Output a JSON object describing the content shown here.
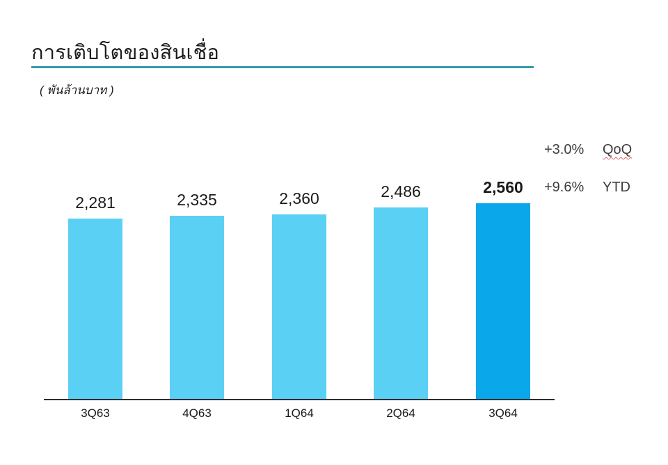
{
  "title": "การเติบโตของสินเชื่อ",
  "unit_label": "( พันล้านบาท )",
  "annotations": [
    {
      "value": "+3.0%",
      "label": "QoQ",
      "spellcheck_underline": true
    },
    {
      "value": "+9.6%",
      "label": "YTD",
      "spellcheck_underline": false
    }
  ],
  "colors": {
    "bar": "#5bd0f5",
    "bar_highlight": "#0aa7ea",
    "title_underline": "#3898ac",
    "axis": "#2e2e2e",
    "spellcheck_red": "#e06666"
  },
  "chart_data": {
    "type": "bar",
    "title": "การเติบโตของสินเชื่อ",
    "subtitle": "( พันล้านบาท )",
    "categories": [
      "3Q63",
      "4Q63",
      "1Q64",
      "2Q64",
      "3Q64"
    ],
    "values": [
      2281,
      2335,
      2360,
      2486,
      2560
    ],
    "display_values": [
      "2,281",
      "2,335",
      "2,360",
      "2,486",
      "2,560"
    ],
    "highlight_index": 4,
    "xlabel": "",
    "ylabel": "พันล้านบาท (billion baht)",
    "ylim": [
      0,
      2700
    ],
    "grid": false,
    "legend": false,
    "annotations": [
      {
        "text": "+3.0% QoQ"
      },
      {
        "text": "+9.6% YTD"
      }
    ]
  }
}
